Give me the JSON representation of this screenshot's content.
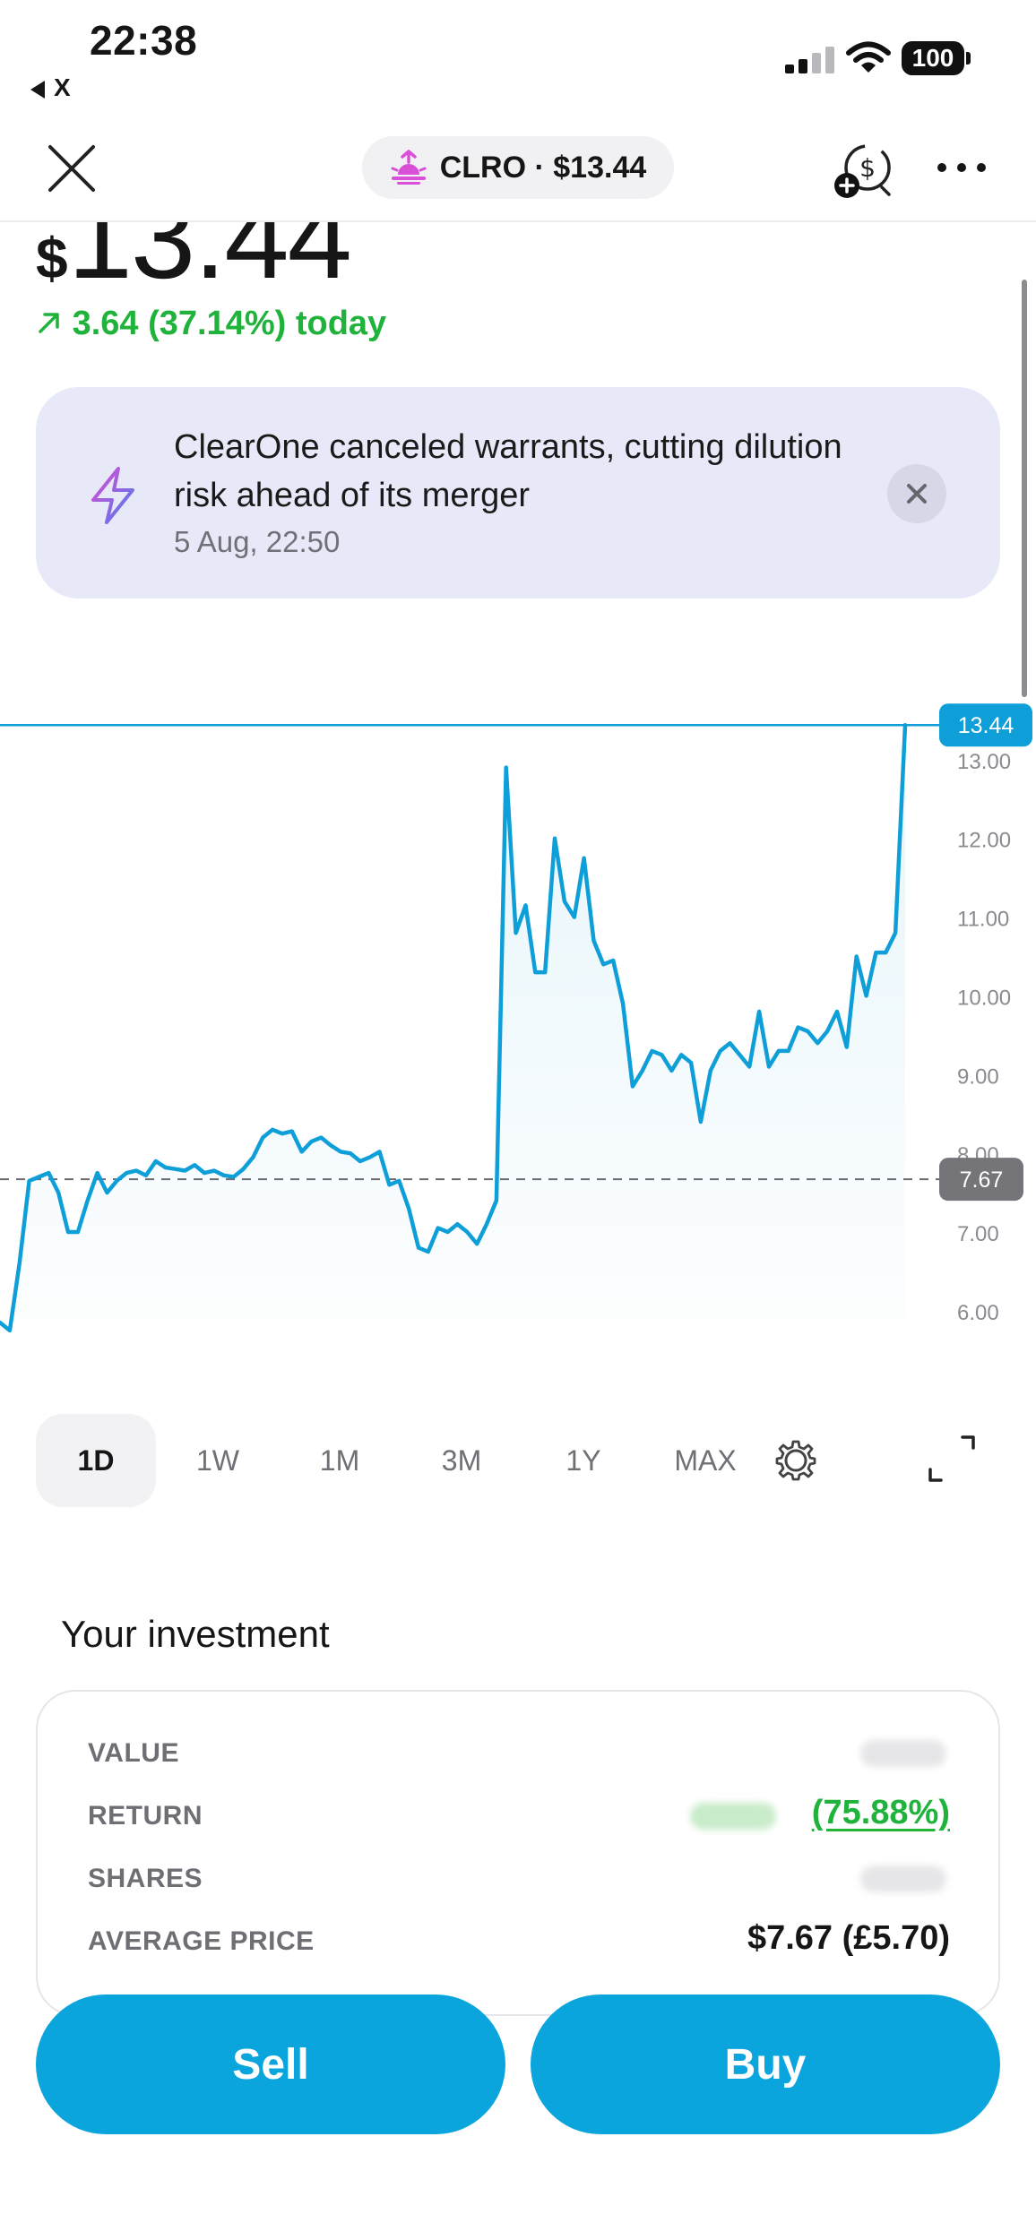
{
  "status_bar": {
    "time": "22:38",
    "back_label": "X",
    "battery": "100"
  },
  "header": {
    "ticker_label": "CLRO · $13.44"
  },
  "price": {
    "currency_symbol": "$",
    "value": "13.44",
    "change": "3.64 (37.14%) today"
  },
  "news": {
    "headline": "ClearOne canceled warrants, cutting dilution risk ahead of its merger",
    "timestamp": "5 Aug, 22:50"
  },
  "chart_data": {
    "type": "line",
    "title": "",
    "xlabel": "",
    "ylabel": "",
    "y_ticks": [
      "13.00",
      "12.00",
      "11.00",
      "10.00",
      "9.00",
      "8.00",
      "7.00",
      "6.00"
    ],
    "ylim": [
      5.35,
      14.0
    ],
    "current_price_label": "13.44",
    "reference_label": "7.67",
    "current_price": 13.44,
    "reference_price": 7.67,
    "grid": false,
    "series": [
      {
        "color": "#0f9fd8",
        "values": [
          5.85,
          5.75,
          6.6,
          7.65,
          7.7,
          7.75,
          7.5,
          7.0,
          7.0,
          7.4,
          7.75,
          7.5,
          7.65,
          7.75,
          7.78,
          7.72,
          7.9,
          7.82,
          7.8,
          7.78,
          7.85,
          7.75,
          7.78,
          7.72,
          7.7,
          7.8,
          7.95,
          8.2,
          8.3,
          8.25,
          8.28,
          8.02,
          8.15,
          8.2,
          8.1,
          8.02,
          8.0,
          7.9,
          7.95,
          8.02,
          7.6,
          7.65,
          7.3,
          6.8,
          6.75,
          7.05,
          7.0,
          7.1,
          7.0,
          6.85,
          7.1,
          7.4,
          12.9,
          10.8,
          11.15,
          10.3,
          10.3,
          12.0,
          11.2,
          11.0,
          11.75,
          10.7,
          10.4,
          10.45,
          9.9,
          8.85,
          9.05,
          9.3,
          9.25,
          9.05,
          9.25,
          9.15,
          8.4,
          9.05,
          9.3,
          9.4,
          9.25,
          9.1,
          9.8,
          9.1,
          9.3,
          9.3,
          9.6,
          9.55,
          9.4,
          9.55,
          9.8,
          9.35,
          10.5,
          10.0,
          10.55,
          10.55,
          10.8,
          13.44
        ]
      }
    ]
  },
  "range_tabs": [
    "1D",
    "1W",
    "1M",
    "3M",
    "1Y",
    "MAX"
  ],
  "active_range": "1D",
  "investment": {
    "title": "Your investment",
    "value_label": "VALUE",
    "return_label": "RETURN",
    "return_pct": "(75.88%)",
    "shares_label": "SHARES",
    "avg_price_label": "AVERAGE PRICE",
    "avg_price_value": "$7.67 (£5.70)"
  },
  "actions": {
    "sell": "Sell",
    "buy": "Buy"
  },
  "colors": {
    "accent": "#0aa5dc",
    "positive": "#1fb33c",
    "news_bg": "#e8e9f8",
    "price_tag_bg": "#0f9fd8",
    "reference_tag_bg": "#757579"
  },
  "icons": {
    "close": "close-icon",
    "ticker": "sunrise-icon",
    "coin": "dollar-coin-add-icon",
    "more": "more-horizontal-icon",
    "news": "lightning-bolt-icon",
    "settings": "gear-icon",
    "expand": "expand-icon"
  }
}
